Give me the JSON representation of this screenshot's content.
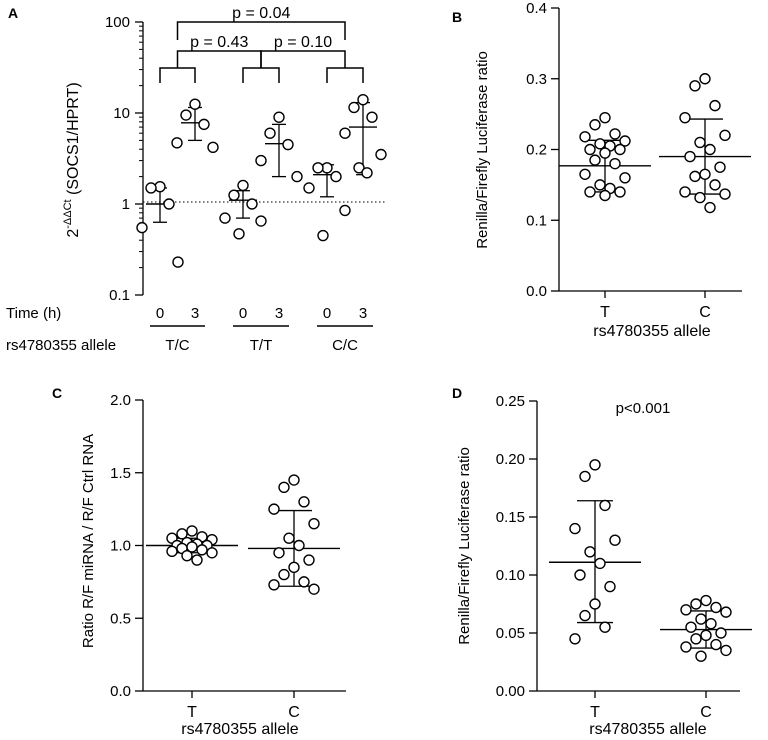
{
  "chart_data": [
    {
      "panel": "A",
      "type": "scatter",
      "yscale": "log",
      "ylabel_prefix": "2",
      "ylabel_exp": "-ΔΔCt",
      "ylabel_rest": " (SOCS1/HPRT)",
      "ylim": [
        0.1,
        100
      ],
      "yticks": [
        0.1,
        1,
        10,
        100
      ],
      "ytick_labels": [
        "0.1",
        "1",
        "10",
        "100"
      ],
      "reference_line": 1,
      "time_row_label": "Time (h)",
      "allele_row_label": "rs4780355 allele",
      "groups": [
        {
          "genotype": "T/C",
          "time": "0",
          "points": [
            1.55,
            1.5,
            1.0,
            0.55,
            0.23
          ],
          "mean": 1.0,
          "sd": [
            0.63,
            1.5
          ]
        },
        {
          "genotype": "T/C",
          "time": "3",
          "points": [
            12.5,
            9.5,
            7.5,
            4.7,
            4.2
          ],
          "mean": 7.8,
          "sd": [
            5.0,
            11.5
          ]
        },
        {
          "genotype": "T/T",
          "time": "0",
          "points": [
            1.6,
            1.25,
            1.0,
            0.7,
            0.65,
            0.47
          ],
          "mean": 1.1,
          "sd": [
            0.7,
            1.4
          ]
        },
        {
          "genotype": "T/T",
          "time": "3",
          "points": [
            9.0,
            6.0,
            4.5,
            3.0,
            2.0
          ],
          "mean": 4.6,
          "sd": [
            2.0,
            7.5
          ]
        },
        {
          "genotype": "C/C",
          "time": "0",
          "points": [
            2.5,
            2.5,
            2.0,
            1.5,
            0.85,
            0.45
          ],
          "mean": 2.1,
          "sd": [
            1.2,
            2.7
          ]
        },
        {
          "genotype": "C/C",
          "time": "3",
          "points": [
            14.0,
            11.5,
            9.0,
            6.0,
            3.5,
            2.5,
            2.2
          ],
          "mean": 7.0,
          "sd": [
            2.1,
            13.0
          ]
        }
      ],
      "comparisons": [
        {
          "label": "p = 0.04",
          "from": "T/C-3",
          "to": "C/C-3"
        },
        {
          "label": "p = 0.43",
          "from": "T/C-3",
          "to": "T/T-3"
        },
        {
          "label": "p = 0.10",
          "from": "T/T-3",
          "to": "C/C-3"
        }
      ]
    },
    {
      "panel": "B",
      "type": "scatter",
      "ylabel": "Renilla/Firefly Luciferase ratio",
      "xlabel": "rs4780355 allele",
      "ylim": [
        0,
        0.4
      ],
      "yticks": [
        "0.0",
        "0.1",
        "0.2",
        "0.3",
        "0.4"
      ],
      "categories": [
        "T",
        "C"
      ],
      "groups": [
        {
          "points": [
            0.245,
            0.235,
            0.222,
            0.218,
            0.212,
            0.208,
            0.205,
            0.2,
            0.2,
            0.195,
            0.185,
            0.18,
            0.165,
            0.16,
            0.15,
            0.145,
            0.14,
            0.14,
            0.135
          ],
          "mean": 0.177,
          "sd": [
            0.14,
            0.213
          ]
        },
        {
          "points": [
            0.3,
            0.29,
            0.262,
            0.245,
            0.22,
            0.21,
            0.2,
            0.19,
            0.175,
            0.165,
            0.162,
            0.15,
            0.14,
            0.137,
            0.132,
            0.118
          ],
          "mean": 0.19,
          "sd": [
            0.137,
            0.243
          ]
        }
      ]
    },
    {
      "panel": "C",
      "type": "scatter",
      "ylabel": "Ratio R/F miRNA / R/F Ctrl RNA",
      "xlabel": "rs4780355 allele",
      "ylim": [
        0,
        2.0
      ],
      "yticks": [
        "0.0",
        "0.5",
        "1.0",
        "1.5",
        "2.0"
      ],
      "categories": [
        "T",
        "C"
      ],
      "groups": [
        {
          "points": [
            1.1,
            1.08,
            1.06,
            1.05,
            1.04,
            1.02,
            1.01,
            1.0,
            1.0,
            0.99,
            0.98,
            0.97,
            0.96,
            0.95,
            0.93,
            0.9
          ],
          "mean": 1.0,
          "sd": [
            0.95,
            1.05
          ]
        },
        {
          "points": [
            1.45,
            1.4,
            1.3,
            1.25,
            1.15,
            1.05,
            1.0,
            0.95,
            0.9,
            0.85,
            0.8,
            0.75,
            0.73,
            0.7
          ],
          "mean": 0.98,
          "sd": [
            0.72,
            1.24
          ]
        }
      ]
    },
    {
      "panel": "D",
      "type": "scatter",
      "ylabel": "Renilla/Firefly Luciferase ratio",
      "xlabel": "rs4780355 allele",
      "ylim": [
        0,
        0.25
      ],
      "yticks": [
        "0.00",
        "0.05",
        "0.10",
        "0.15",
        "0.20",
        "0.25"
      ],
      "categories": [
        "T",
        "C"
      ],
      "annotation": "p<0.001",
      "groups": [
        {
          "points": [
            0.195,
            0.185,
            0.16,
            0.14,
            0.13,
            0.12,
            0.11,
            0.1,
            0.09,
            0.075,
            0.065,
            0.055,
            0.045
          ],
          "mean": 0.111,
          "sd": [
            0.059,
            0.164
          ]
        },
        {
          "points": [
            0.078,
            0.075,
            0.072,
            0.07,
            0.068,
            0.062,
            0.058,
            0.055,
            0.05,
            0.048,
            0.045,
            0.04,
            0.038,
            0.035,
            0.03
          ],
          "mean": 0.053,
          "sd": [
            0.037,
            0.069
          ]
        }
      ]
    }
  ]
}
